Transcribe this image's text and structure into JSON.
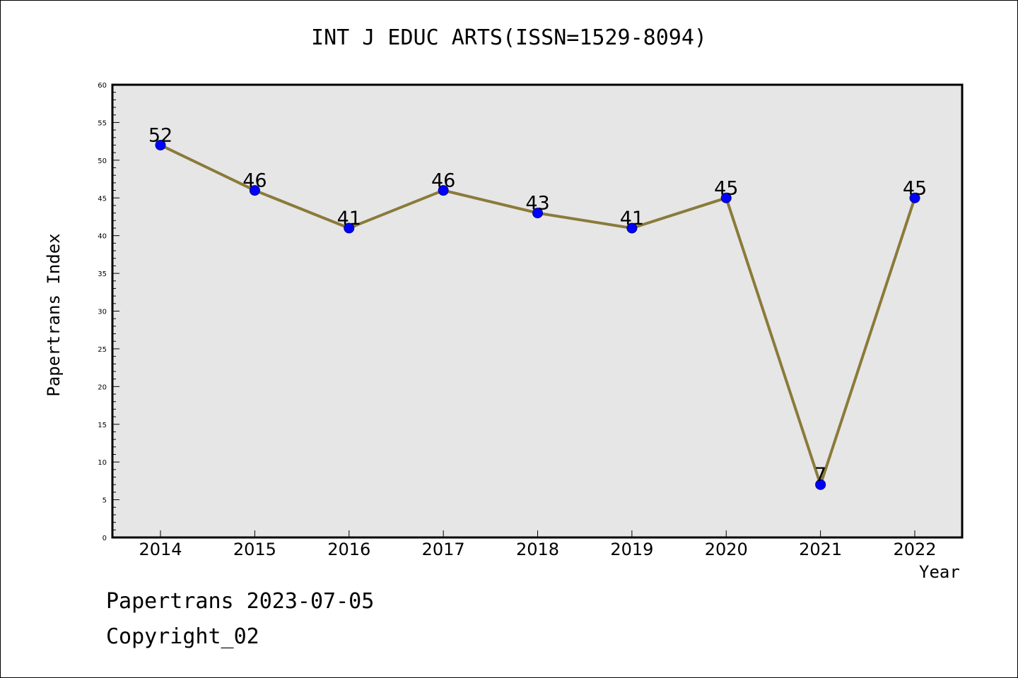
{
  "chart_data": {
    "type": "line",
    "title": "INT J EDUC ARTS(ISSN=1529-8094)",
    "xlabel": "Year",
    "ylabel": "Papertrans Index",
    "categories": [
      "2014",
      "2015",
      "2016",
      "2017",
      "2018",
      "2019",
      "2020",
      "2021",
      "2022"
    ],
    "series": [
      {
        "values": [
          52,
          46,
          41,
          46,
          43,
          41,
          45,
          7,
          45
        ]
      }
    ],
    "data_labels": [
      "52",
      "46",
      "41",
      "46",
      "43",
      "41",
      "45",
      "7",
      "45"
    ],
    "ylim": [
      0,
      60
    ],
    "yticks": [
      "0",
      "5",
      "10",
      "15",
      "20",
      "25",
      "30",
      "35",
      "40",
      "45",
      "50",
      "55",
      "60"
    ],
    "y_tick_step": 5,
    "y_minor_step": 1,
    "grid": false,
    "legend": "none",
    "colors": {
      "plot_background": "#e6e6e6",
      "line": "#8b7a3a",
      "marker": "#0000ff",
      "marker_edge": "#000080"
    }
  },
  "footer": {
    "line1": "Papertrans 2023-07-05",
    "line2": "Copyright_02"
  }
}
